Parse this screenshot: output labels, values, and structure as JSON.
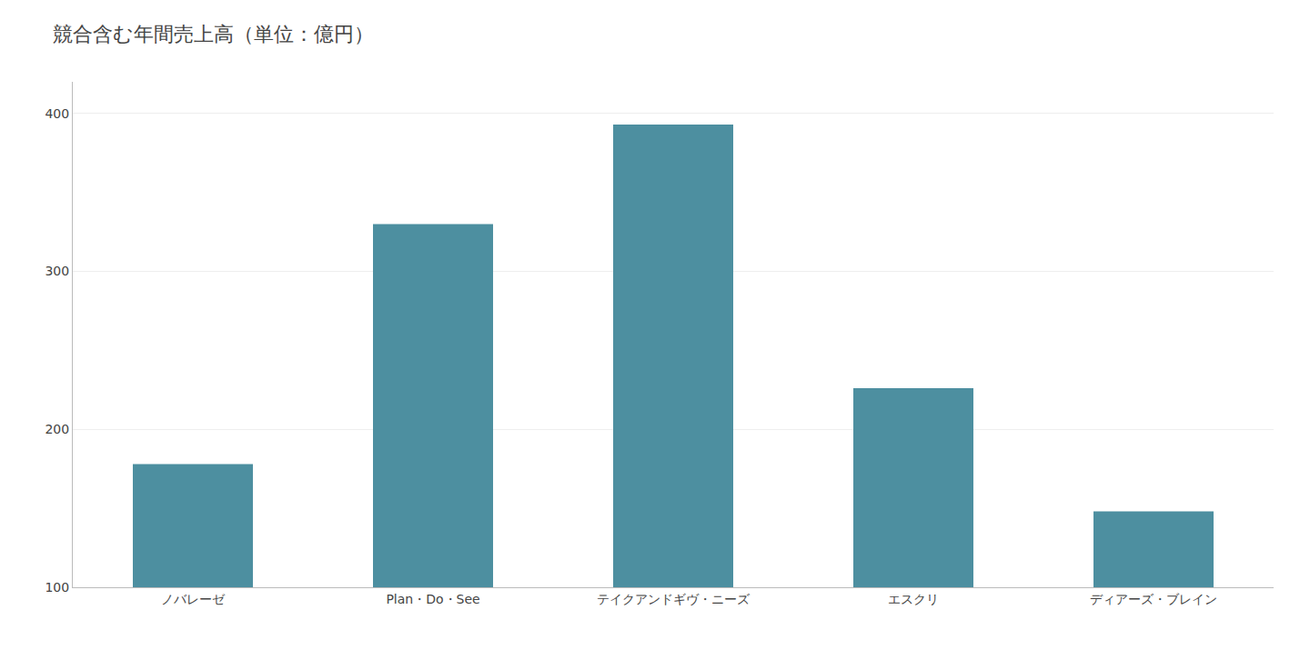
{
  "chart_data": {
    "type": "bar",
    "title": "競合含む年間売上高（単位：億円）",
    "categories": [
      "ノバレーゼ",
      "Plan・Do・See",
      "テイクアンドギヴ・ニーズ",
      "エスクリ",
      "ディアーズ・ブレイン"
    ],
    "values": [
      178,
      330,
      393,
      226,
      148
    ],
    "color": "#4d8fa0",
    "ylim": [
      100,
      420
    ],
    "yticks": [
      100,
      200,
      300,
      400
    ],
    "grid": true
  }
}
